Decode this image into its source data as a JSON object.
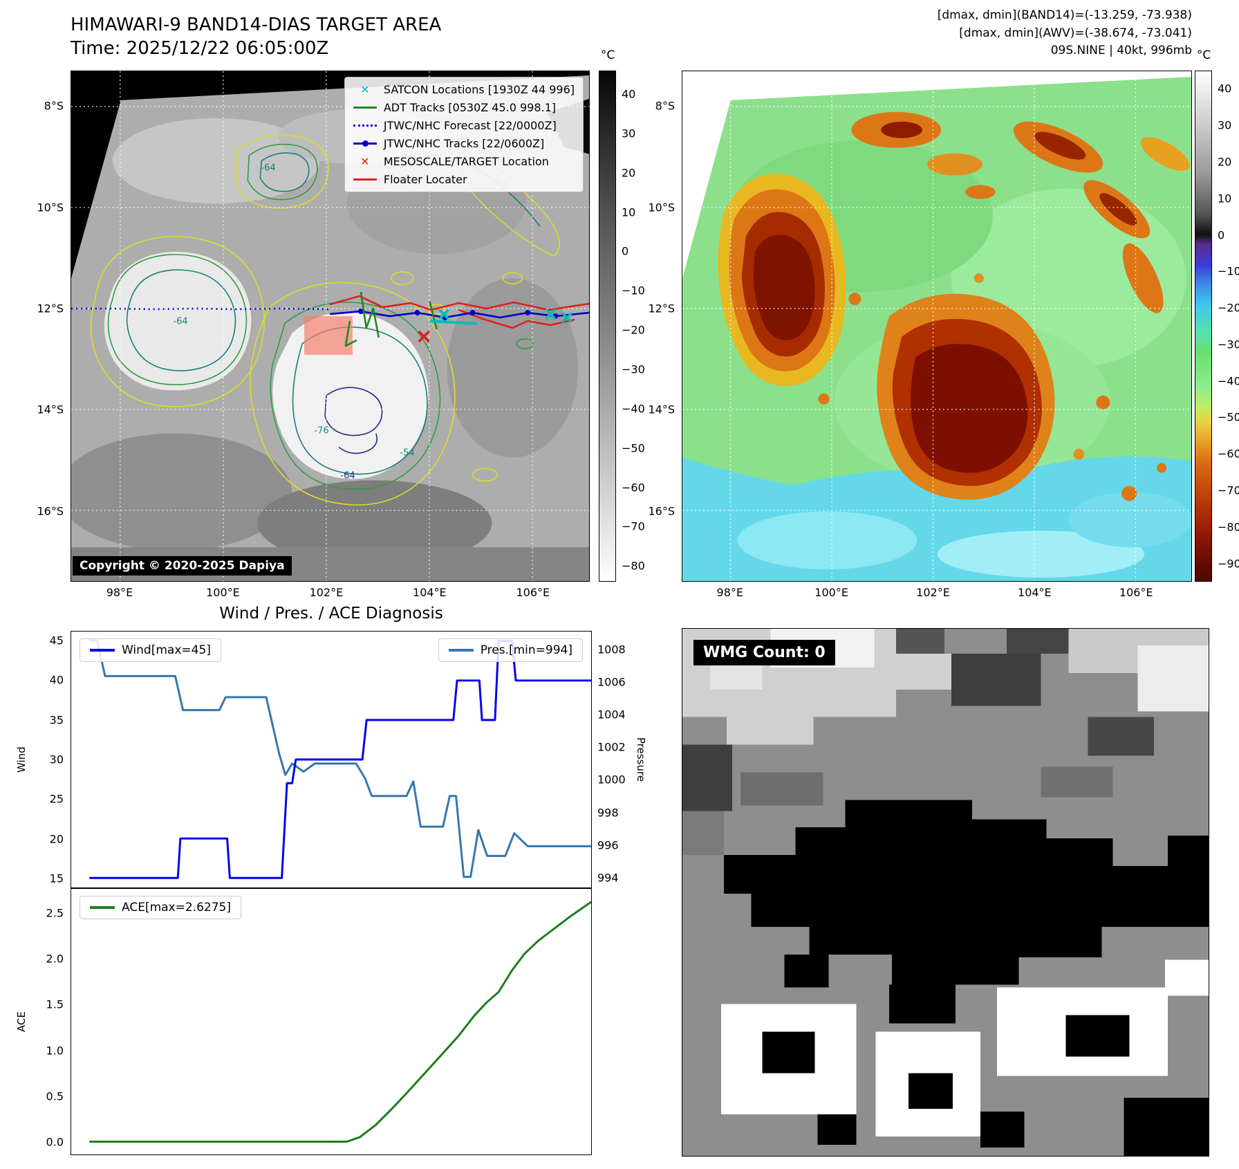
{
  "band14": {
    "title": "HIMAWARI-9 BAND14-DIAS TARGET AREA",
    "time_line": "Time: 2025/12/22 06:05:00Z",
    "legend": [
      {
        "label": "SATCON Locations [1930Z 44 996]",
        "color": "#00bcbc",
        "marker": "x"
      },
      {
        "label": "ADT Tracks [0530Z 45.0 998.1]",
        "color": "#1d8a1d",
        "marker": "line"
      },
      {
        "label": "JTWC/NHC Forecast [22/0000Z]",
        "color": "#0000cd",
        "marker": "dotted-line"
      },
      {
        "label": "JTWC/NHC Tracks [22/0600Z]",
        "color": "#0000cd",
        "marker": "line-dot"
      },
      {
        "label": "MESOSCALE/TARGET Location",
        "color": "#e81818",
        "marker": "x"
      },
      {
        "label": "Floater Locater",
        "color": "#e02020",
        "marker": "line"
      }
    ],
    "contour_labels": [
      {
        "text": "-64"
      },
      {
        "text": "-64"
      },
      {
        "text": "-76"
      },
      {
        "text": "-54"
      },
      {
        "text": "-64"
      }
    ],
    "copyright": "Copyright © 2020-2025 Dapiya",
    "colorbar": {
      "unit": "°C",
      "values": [
        40,
        30,
        20,
        10,
        0,
        -10,
        -20,
        -30,
        -40,
        -50,
        -60,
        -70,
        -80
      ],
      "range": [
        46,
        -84
      ]
    }
  },
  "awv": {
    "header_lines": [
      "[dmax, dmin](BAND14)=(-13.259, -73.938)",
      "[dmax, dmin](AWV)=(-38.674, -73.041)",
      "09S.NINE | 40kt, 996mb"
    ],
    "colorbar": {
      "unit": "°C",
      "values": [
        40,
        30,
        20,
        10,
        0,
        -10,
        -20,
        -30,
        -40,
        -50,
        -60,
        -70,
        -80,
        -90
      ],
      "range": [
        45,
        -95
      ]
    }
  },
  "geo": {
    "lat_axis": {
      "values": [
        8,
        10,
        12,
        14,
        16
      ],
      "suffix": "°S",
      "range": [
        7.3,
        17.4
      ]
    },
    "lon_axis": {
      "values": [
        98,
        100,
        102,
        104,
        106
      ],
      "suffix": "°E",
      "range": [
        97.05,
        107.1
      ]
    }
  },
  "diagnosis": {
    "title": "Wind / Pres. / ACE Diagnosis"
  },
  "wmg": {
    "count_label": "WMG Count: 0"
  },
  "chart_data": [
    {
      "type": "line",
      "title": "Wind / Pres. / ACE Diagnosis",
      "x_range": [
        0,
        1
      ],
      "grid": false,
      "left_axis": {
        "label": "Wind",
        "values": [
          15,
          20,
          25,
          30,
          35,
          40,
          45
        ],
        "range": [
          46.2,
          13.8
        ]
      },
      "right_axis": {
        "label": "Pressure",
        "values": [
          994,
          996,
          998,
          1000,
          1002,
          1004,
          1006,
          1008
        ],
        "range": [
          1009.15,
          993.35
        ]
      },
      "series": [
        {
          "name": "Pres.[min=994]",
          "color": "#3576af",
          "axis": "right",
          "min": 994,
          "points": [
            [
              0.035,
              1008.6
            ],
            [
              0.05,
              1008.6
            ],
            [
              0.065,
              1006.4
            ],
            [
              0.2,
              1006.4
            ],
            [
              0.215,
              1004.3
            ],
            [
              0.285,
              1004.3
            ],
            [
              0.297,
              1005.1
            ],
            [
              0.375,
              1005.1
            ],
            [
              0.4,
              1001.6
            ],
            [
              0.412,
              1000.3
            ],
            [
              0.425,
              1001.0
            ],
            [
              0.447,
              1000.5
            ],
            [
              0.468,
              1001.0
            ],
            [
              0.548,
              1001.0
            ],
            [
              0.565,
              1000.1
            ],
            [
              0.578,
              999.0
            ],
            [
              0.645,
              999.0
            ],
            [
              0.658,
              999.9
            ],
            [
              0.672,
              997.1
            ],
            [
              0.715,
              997.1
            ],
            [
              0.728,
              999.0
            ],
            [
              0.74,
              999.0
            ],
            [
              0.755,
              994.0
            ],
            [
              0.768,
              994.0
            ],
            [
              0.783,
              996.9
            ],
            [
              0.8,
              995.3
            ],
            [
              0.835,
              995.3
            ],
            [
              0.852,
              996.7
            ],
            [
              0.878,
              995.9
            ],
            [
              1.0,
              995.9
            ]
          ]
        },
        {
          "name": "Wind[max=45]",
          "color": "#0000ee",
          "axis": "left",
          "max": 45,
          "points": [
            [
              0.035,
              15
            ],
            [
              0.205,
              15
            ],
            [
              0.21,
              20
            ],
            [
              0.3,
              20
            ],
            [
              0.305,
              15
            ],
            [
              0.405,
              15
            ],
            [
              0.415,
              27
            ],
            [
              0.425,
              27
            ],
            [
              0.432,
              30
            ],
            [
              0.56,
              30
            ],
            [
              0.568,
              35
            ],
            [
              0.735,
              35
            ],
            [
              0.742,
              40
            ],
            [
              0.785,
              40
            ],
            [
              0.79,
              35
            ],
            [
              0.815,
              35
            ],
            [
              0.822,
              45
            ],
            [
              0.848,
              45
            ],
            [
              0.855,
              40
            ],
            [
              1.0,
              40
            ]
          ]
        }
      ]
    },
    {
      "type": "line",
      "x_range": [
        0,
        1
      ],
      "grid": false,
      "left_axis": {
        "label": "ACE",
        "values": [
          0.0,
          0.5,
          1.0,
          1.5,
          2.0,
          2.5
        ],
        "range": [
          2.77,
          -0.14
        ],
        "decimals": 1
      },
      "series": [
        {
          "name": "ACE[max=2.6275]",
          "color": "#1d7d1d",
          "axis": "left",
          "max": 2.6275,
          "points": [
            [
              0.035,
              0.0
            ],
            [
              0.53,
              0.0
            ],
            [
              0.555,
              0.05
            ],
            [
              0.585,
              0.18
            ],
            [
              0.615,
              0.35
            ],
            [
              0.648,
              0.55
            ],
            [
              0.68,
              0.75
            ],
            [
              0.712,
              0.95
            ],
            [
              0.745,
              1.16
            ],
            [
              0.775,
              1.38
            ],
            [
              0.798,
              1.52
            ],
            [
              0.822,
              1.64
            ],
            [
              0.848,
              1.88
            ],
            [
              0.872,
              2.06
            ],
            [
              0.898,
              2.2
            ],
            [
              0.928,
              2.33
            ],
            [
              0.958,
              2.46
            ],
            [
              1.0,
              2.6275
            ]
          ]
        }
      ]
    }
  ]
}
